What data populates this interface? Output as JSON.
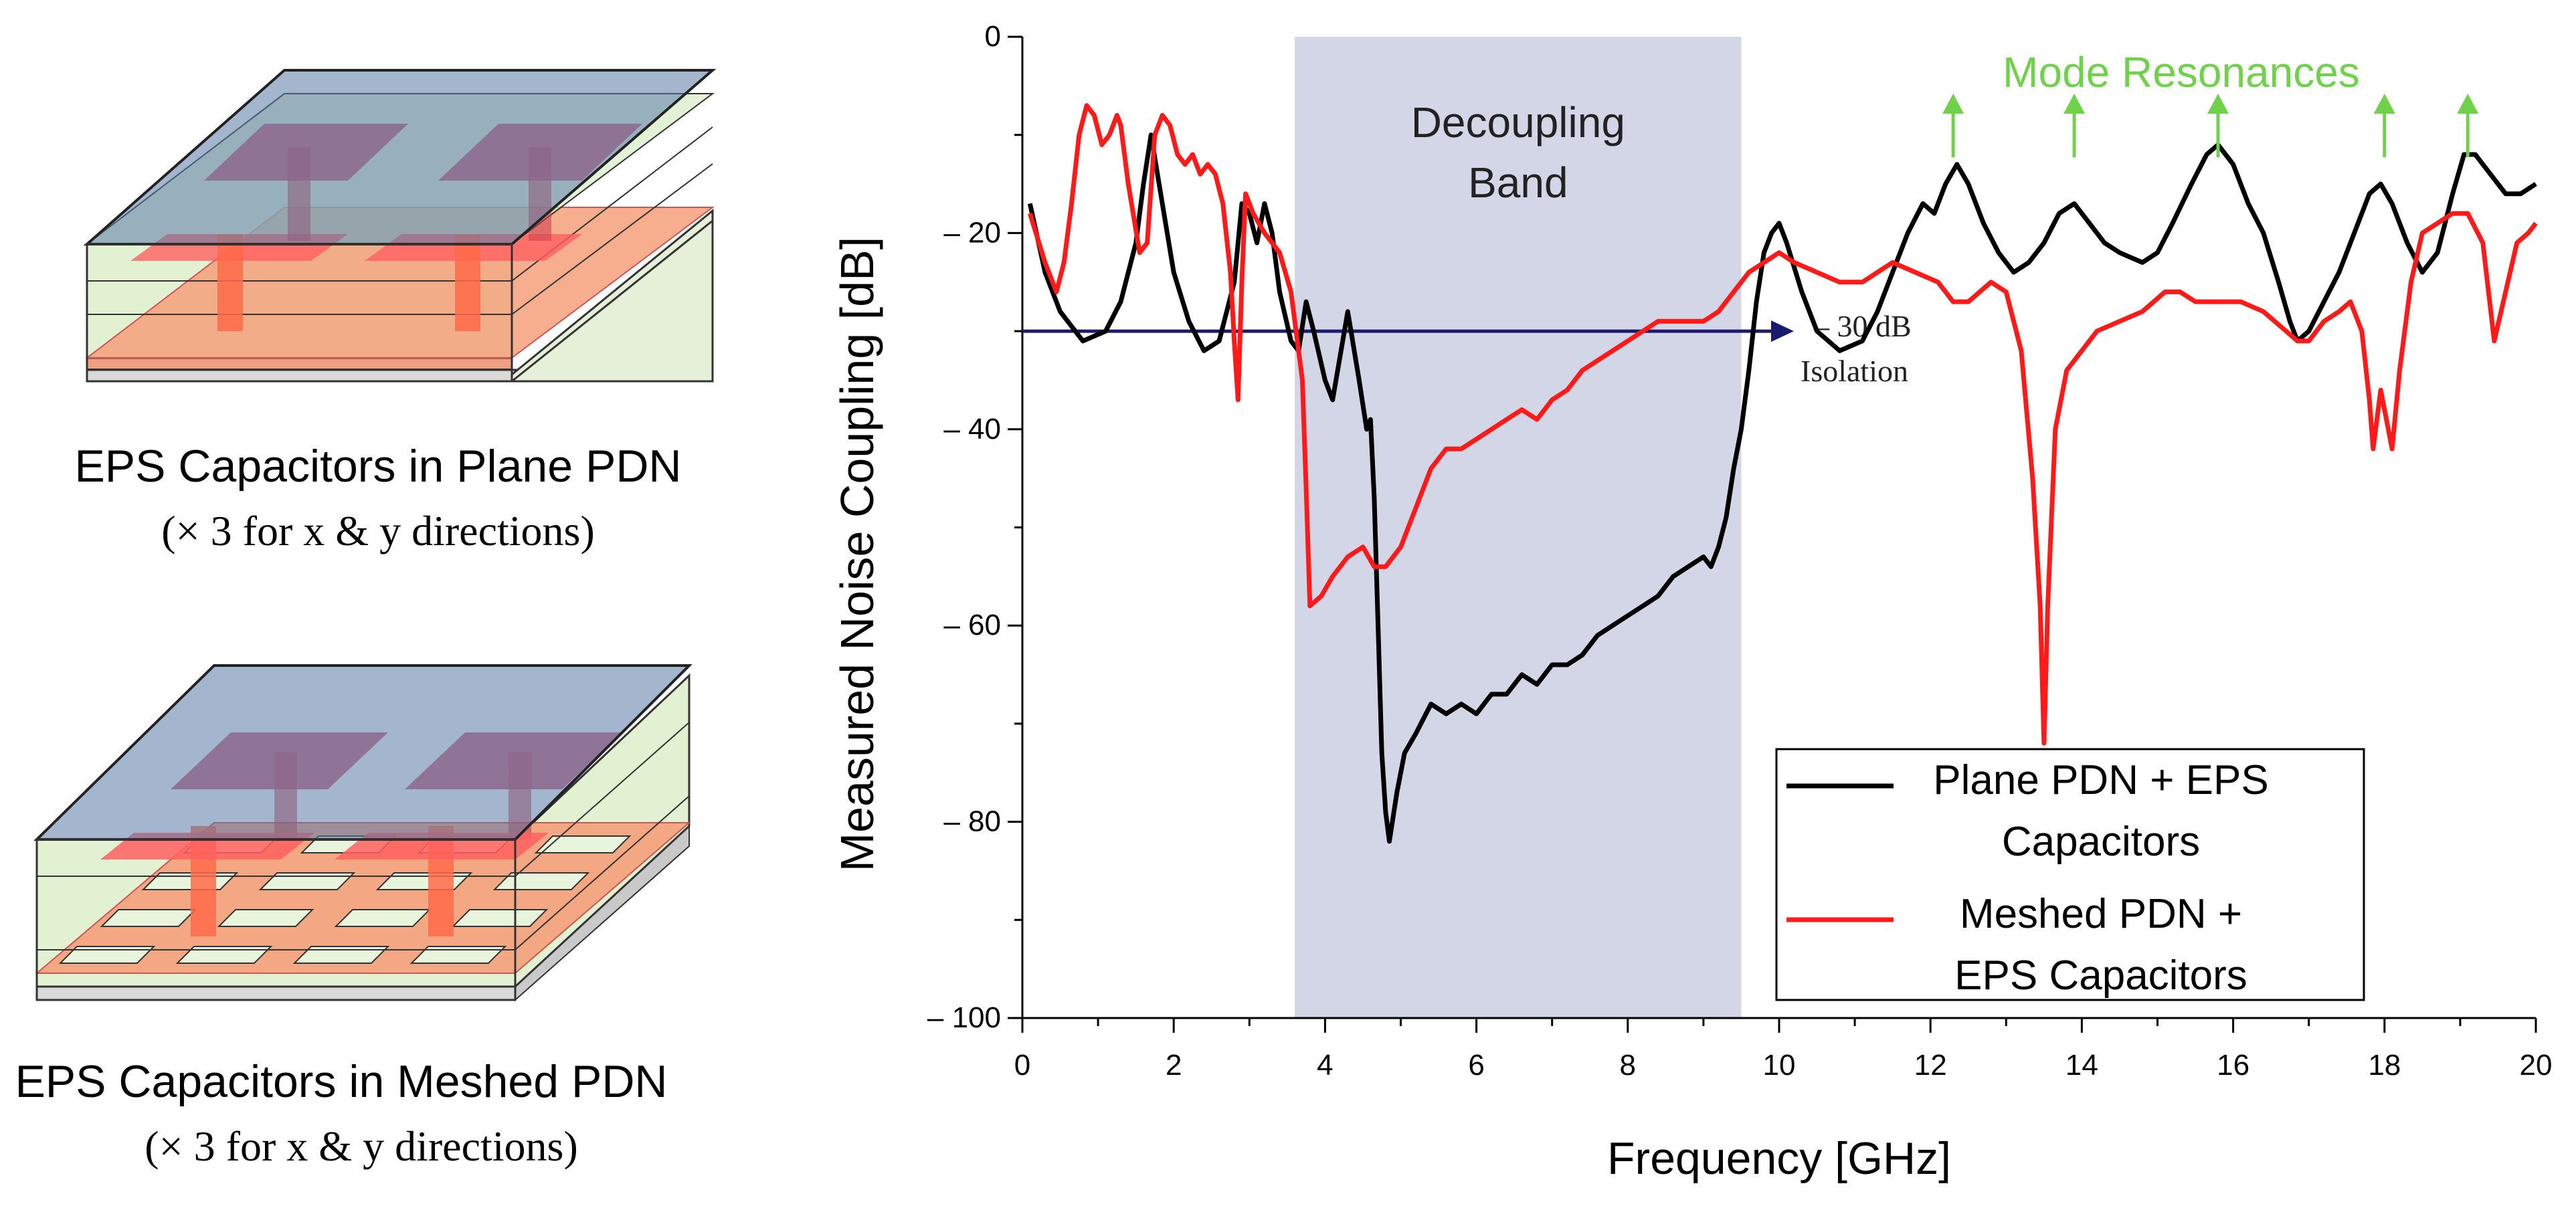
{
  "panels": {
    "plane": {
      "caption": "EPS Capacitors in Plane PDN",
      "subcaption": "(× 3 for x & y directions)"
    },
    "meshed": {
      "caption": "EPS Capacitors in Meshed PDN",
      "subcaption": "(× 3 for x & y directions)"
    }
  },
  "colors": {
    "plane_series": "#000000",
    "meshed_series": "#ff1a1a",
    "decoupling_band": "#d3d6e6",
    "mode_resonance": "#6fd24a",
    "isolation_arrow": "#1a1a6e"
  },
  "chart_data": {
    "type": "line",
    "xlabel": "Frequency [GHz]",
    "ylabel": "Measured Noise Coupling [dB]",
    "xlim": [
      0,
      20
    ],
    "ylim": [
      -100,
      0
    ],
    "xticks": [
      "0",
      "2",
      "4",
      "6",
      "8",
      "10",
      "12",
      "14",
      "16",
      "18",
      "20"
    ],
    "yticks": [
      "0",
      "– 20",
      "– 40",
      "– 60",
      "– 80",
      "– 100"
    ],
    "grid": false,
    "legend_position": "bottom-right",
    "band": {
      "label": "Decoupling Band",
      "x_range": [
        3.6,
        9.5
      ]
    },
    "isolation": {
      "label_value": "– 30 dB",
      "label_text": "Isolation",
      "y": -30,
      "x_range": [
        0,
        10
      ]
    },
    "mode_resonances": {
      "label": "Mode Resonances",
      "x": [
        12.3,
        13.9,
        15.8,
        18.0,
        19.1
      ]
    },
    "series": [
      {
        "name": "Plane PDN + EPS Capacitors",
        "color": "#000000",
        "points": [
          [
            0.1,
            -17
          ],
          [
            0.3,
            -24
          ],
          [
            0.5,
            -28
          ],
          [
            0.8,
            -31
          ],
          [
            1.1,
            -30
          ],
          [
            1.3,
            -27
          ],
          [
            1.5,
            -21
          ],
          [
            1.6,
            -15
          ],
          [
            1.7,
            -10
          ],
          [
            1.85,
            -17
          ],
          [
            2.0,
            -24
          ],
          [
            2.2,
            -29
          ],
          [
            2.4,
            -32
          ],
          [
            2.6,
            -31
          ],
          [
            2.8,
            -25
          ],
          [
            2.9,
            -17
          ],
          [
            3.0,
            -18
          ],
          [
            3.1,
            -21
          ],
          [
            3.2,
            -17
          ],
          [
            3.3,
            -20
          ],
          [
            3.4,
            -26
          ],
          [
            3.55,
            -31
          ],
          [
            3.65,
            -32
          ],
          [
            3.75,
            -27
          ],
          [
            3.85,
            -30
          ],
          [
            4.0,
            -35
          ],
          [
            4.1,
            -37
          ],
          [
            4.3,
            -28
          ],
          [
            4.45,
            -35
          ],
          [
            4.55,
            -40
          ],
          [
            4.6,
            -39
          ],
          [
            4.65,
            -47
          ],
          [
            4.7,
            -60
          ],
          [
            4.75,
            -73
          ],
          [
            4.8,
            -79
          ],
          [
            4.85,
            -82
          ],
          [
            4.95,
            -77
          ],
          [
            5.05,
            -73
          ],
          [
            5.2,
            -71
          ],
          [
            5.4,
            -68
          ],
          [
            5.6,
            -69
          ],
          [
            5.8,
            -68
          ],
          [
            6.0,
            -69
          ],
          [
            6.2,
            -67
          ],
          [
            6.4,
            -67
          ],
          [
            6.6,
            -65
          ],
          [
            6.8,
            -66
          ],
          [
            7.0,
            -64
          ],
          [
            7.2,
            -64
          ],
          [
            7.4,
            -63
          ],
          [
            7.6,
            -61
          ],
          [
            7.8,
            -60
          ],
          [
            8.0,
            -59
          ],
          [
            8.2,
            -58
          ],
          [
            8.4,
            -57
          ],
          [
            8.6,
            -55
          ],
          [
            8.8,
            -54
          ],
          [
            9.0,
            -53
          ],
          [
            9.1,
            -54
          ],
          [
            9.2,
            -52
          ],
          [
            9.3,
            -49
          ],
          [
            9.4,
            -44
          ],
          [
            9.5,
            -40
          ],
          [
            9.6,
            -34
          ],
          [
            9.7,
            -27
          ],
          [
            9.8,
            -22
          ],
          [
            9.9,
            -20
          ],
          [
            10.0,
            -19
          ],
          [
            10.1,
            -21
          ],
          [
            10.3,
            -26
          ],
          [
            10.5,
            -30
          ],
          [
            10.8,
            -32
          ],
          [
            11.1,
            -31
          ],
          [
            11.3,
            -28
          ],
          [
            11.5,
            -24
          ],
          [
            11.7,
            -20
          ],
          [
            11.9,
            -17
          ],
          [
            12.05,
            -18
          ],
          [
            12.2,
            -15
          ],
          [
            12.35,
            -13
          ],
          [
            12.5,
            -15
          ],
          [
            12.7,
            -19
          ],
          [
            12.9,
            -22
          ],
          [
            13.1,
            -24
          ],
          [
            13.3,
            -23
          ],
          [
            13.5,
            -21
          ],
          [
            13.7,
            -18
          ],
          [
            13.9,
            -17
          ],
          [
            14.1,
            -19
          ],
          [
            14.3,
            -21
          ],
          [
            14.5,
            -22
          ],
          [
            14.8,
            -23
          ],
          [
            15.0,
            -22
          ],
          [
            15.2,
            -19
          ],
          [
            15.45,
            -15
          ],
          [
            15.65,
            -12
          ],
          [
            15.8,
            -11
          ],
          [
            16.0,
            -13
          ],
          [
            16.2,
            -17
          ],
          [
            16.4,
            -20
          ],
          [
            16.6,
            -25
          ],
          [
            16.75,
            -29
          ],
          [
            16.85,
            -31
          ],
          [
            17.0,
            -30
          ],
          [
            17.2,
            -27
          ],
          [
            17.4,
            -24
          ],
          [
            17.6,
            -20
          ],
          [
            17.8,
            -16
          ],
          [
            17.95,
            -15
          ],
          [
            18.1,
            -17
          ],
          [
            18.3,
            -21
          ],
          [
            18.5,
            -24
          ],
          [
            18.7,
            -22
          ],
          [
            18.9,
            -16
          ],
          [
            19.05,
            -12
          ],
          [
            19.2,
            -12
          ],
          [
            19.4,
            -14
          ],
          [
            19.6,
            -16
          ],
          [
            19.8,
            -16
          ],
          [
            20.0,
            -15
          ]
        ]
      },
      {
        "name": "Meshed PDN + EPS Capacitors",
        "color": "#ff1a1a",
        "points": [
          [
            0.1,
            -18
          ],
          [
            0.3,
            -23
          ],
          [
            0.45,
            -26
          ],
          [
            0.55,
            -23
          ],
          [
            0.65,
            -17
          ],
          [
            0.75,
            -10
          ],
          [
            0.85,
            -7
          ],
          [
            0.95,
            -8
          ],
          [
            1.05,
            -11
          ],
          [
            1.15,
            -10
          ],
          [
            1.25,
            -8
          ],
          [
            1.3,
            -9
          ],
          [
            1.4,
            -15
          ],
          [
            1.55,
            -22
          ],
          [
            1.65,
            -21
          ],
          [
            1.75,
            -10
          ],
          [
            1.85,
            -8
          ],
          [
            1.95,
            -9
          ],
          [
            2.05,
            -12
          ],
          [
            2.15,
            -13
          ],
          [
            2.25,
            -12
          ],
          [
            2.35,
            -14
          ],
          [
            2.45,
            -13
          ],
          [
            2.55,
            -14
          ],
          [
            2.65,
            -17
          ],
          [
            2.75,
            -24
          ],
          [
            2.8,
            -31
          ],
          [
            2.85,
            -37
          ],
          [
            2.9,
            -25
          ],
          [
            2.95,
            -16
          ],
          [
            3.05,
            -18
          ],
          [
            3.2,
            -20
          ],
          [
            3.4,
            -22
          ],
          [
            3.55,
            -26
          ],
          [
            3.7,
            -35
          ],
          [
            3.75,
            -46
          ],
          [
            3.8,
            -58
          ],
          [
            3.95,
            -57
          ],
          [
            4.1,
            -55
          ],
          [
            4.3,
            -53
          ],
          [
            4.5,
            -52
          ],
          [
            4.65,
            -54
          ],
          [
            4.8,
            -54
          ],
          [
            5.0,
            -52
          ],
          [
            5.2,
            -48
          ],
          [
            5.4,
            -44
          ],
          [
            5.6,
            -42
          ],
          [
            5.8,
            -42
          ],
          [
            6.0,
            -41
          ],
          [
            6.2,
            -40
          ],
          [
            6.4,
            -39
          ],
          [
            6.6,
            -38
          ],
          [
            6.8,
            -39
          ],
          [
            7.0,
            -37
          ],
          [
            7.2,
            -36
          ],
          [
            7.4,
            -34
          ],
          [
            7.6,
            -33
          ],
          [
            7.8,
            -32
          ],
          [
            8.0,
            -31
          ],
          [
            8.2,
            -30
          ],
          [
            8.4,
            -29
          ],
          [
            8.6,
            -29
          ],
          [
            8.8,
            -29
          ],
          [
            9.0,
            -29
          ],
          [
            9.2,
            -28
          ],
          [
            9.4,
            -26
          ],
          [
            9.6,
            -24
          ],
          [
            9.8,
            -23
          ],
          [
            10.0,
            -22
          ],
          [
            10.2,
            -23
          ],
          [
            10.5,
            -24
          ],
          [
            10.8,
            -25
          ],
          [
            11.1,
            -25
          ],
          [
            11.3,
            -24
          ],
          [
            11.5,
            -23
          ],
          [
            11.8,
            -24
          ],
          [
            12.1,
            -25
          ],
          [
            12.3,
            -27
          ],
          [
            12.5,
            -27
          ],
          [
            12.8,
            -25
          ],
          [
            13.0,
            -26
          ],
          [
            13.2,
            -32
          ],
          [
            13.35,
            -45
          ],
          [
            13.45,
            -58
          ],
          [
            13.5,
            -72
          ],
          [
            13.55,
            -58
          ],
          [
            13.65,
            -40
          ],
          [
            13.8,
            -34
          ],
          [
            14.0,
            -32
          ],
          [
            14.2,
            -30
          ],
          [
            14.5,
            -29
          ],
          [
            14.8,
            -28
          ],
          [
            15.1,
            -26
          ],
          [
            15.3,
            -26
          ],
          [
            15.5,
            -27
          ],
          [
            15.8,
            -27
          ],
          [
            16.1,
            -27
          ],
          [
            16.4,
            -28
          ],
          [
            16.7,
            -30
          ],
          [
            16.85,
            -31
          ],
          [
            17.0,
            -31
          ],
          [
            17.2,
            -29
          ],
          [
            17.4,
            -28
          ],
          [
            17.55,
            -27
          ],
          [
            17.7,
            -30
          ],
          [
            17.8,
            -37
          ],
          [
            17.85,
            -42
          ],
          [
            17.95,
            -36
          ],
          [
            18.05,
            -40
          ],
          [
            18.1,
            -42
          ],
          [
            18.2,
            -34
          ],
          [
            18.35,
            -25
          ],
          [
            18.5,
            -20
          ],
          [
            18.7,
            -19
          ],
          [
            18.9,
            -18
          ],
          [
            19.1,
            -18
          ],
          [
            19.3,
            -21
          ],
          [
            19.45,
            -31
          ],
          [
            19.6,
            -26
          ],
          [
            19.75,
            -21
          ],
          [
            19.9,
            -20
          ],
          [
            20.0,
            -19
          ]
        ]
      }
    ],
    "legend": [
      {
        "lines": [
          "Plane PDN + EPS",
          "Capacitors"
        ],
        "color": "#000000"
      },
      {
        "lines": [
          "Meshed PDN +",
          "EPS Capacitors"
        ],
        "color": "#ff1a1a"
      }
    ]
  }
}
